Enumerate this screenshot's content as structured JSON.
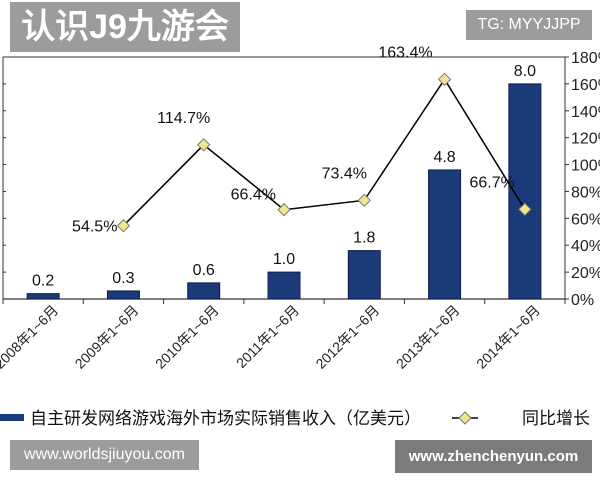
{
  "chart_data": {
    "type": "bar",
    "categories": [
      "2008年1~6月",
      "2009年1~6月",
      "2010年1~6月",
      "2011年1~6月",
      "2012年1~6月",
      "2013年1~6月",
      "2014年1~6月"
    ],
    "series": [
      {
        "name": "自主研发网络游戏海外市场实际销售收入（亿美元）",
        "type": "bar",
        "axis": "left",
        "color": "#1a3a7a",
        "values": [
          0.2,
          0.3,
          0.6,
          1.0,
          1.8,
          4.8,
          8.0
        ],
        "labels": [
          "0.2",
          "0.3",
          "0.6",
          "1.0",
          "1.8",
          "4.8",
          "8.0"
        ]
      },
      {
        "name": "同比增长",
        "type": "line",
        "axis": "right",
        "color": "#000000",
        "marker_color": "#f0e68c",
        "values": [
          null,
          54.5,
          114.7,
          66.4,
          73.4,
          163.4,
          66.7
        ],
        "labels": [
          "",
          "54.5%",
          "114.7%",
          "66.4%",
          "73.4%",
          "163.4%",
          "66.7%"
        ]
      }
    ],
    "left_ylim": [
      0,
      9
    ],
    "right_ylim": [
      0,
      180
    ],
    "right_ticks": [
      "0%",
      "20%",
      "40%",
      "60%",
      "80%",
      "100%",
      "120%",
      "140%",
      "160%",
      "180%"
    ],
    "legend_placement": "bottom",
    "grid": false
  },
  "watermarks": {
    "tg": "TG: MYYJJPP",
    "center": "认识J9九游会",
    "zhenchenyun": "www.zhenchenyun.com",
    "worldsjiuyou": "www.worldsjiuyou.com"
  }
}
